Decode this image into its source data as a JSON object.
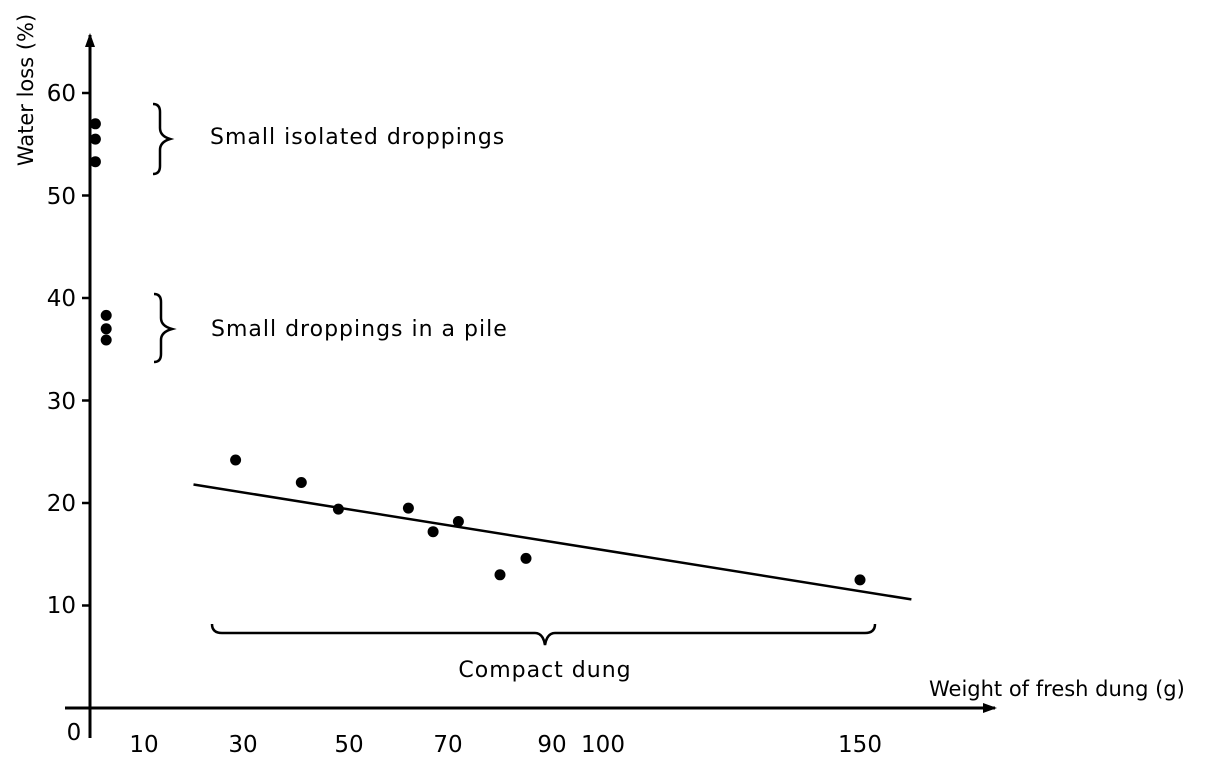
{
  "chart_data": {
    "type": "scatter",
    "xlabel": "Weight of fresh  dung (g)",
    "ylabel": "Water  loss (%)",
    "x_ticks": [
      "0",
      "10",
      "30",
      "50",
      "70",
      "90",
      "100",
      "150"
    ],
    "y_ticks": [
      "10",
      "20",
      "30",
      "40",
      "50",
      "60"
    ],
    "grid": false,
    "groups": [
      {
        "label": "Small isolated droppings",
        "points": [
          {
            "x": 1,
            "y": 57
          },
          {
            "x": 1,
            "y": 55.5
          },
          {
            "x": 1,
            "y": 53.3
          }
        ]
      },
      {
        "label": "Small droppings in a pile",
        "points": [
          {
            "x": 3,
            "y": 38.3
          },
          {
            "x": 3,
            "y": 37
          },
          {
            "x": 3,
            "y": 35.9
          }
        ]
      },
      {
        "label": "Compact dung",
        "points": [
          {
            "x": 28.5,
            "y": 24.2
          },
          {
            "x": 41,
            "y": 22
          },
          {
            "x": 48,
            "y": 19.4
          },
          {
            "x": 62,
            "y": 19.5
          },
          {
            "x": 67,
            "y": 17.2
          },
          {
            "x": 72,
            "y": 18.2
          },
          {
            "x": 80,
            "y": 13
          },
          {
            "x": 85,
            "y": 14.6
          },
          {
            "x": 150,
            "y": 12.5
          }
        ]
      }
    ],
    "trendline": {
      "x": [
        20,
        160
      ],
      "y": [
        21.8,
        10.6
      ]
    }
  }
}
